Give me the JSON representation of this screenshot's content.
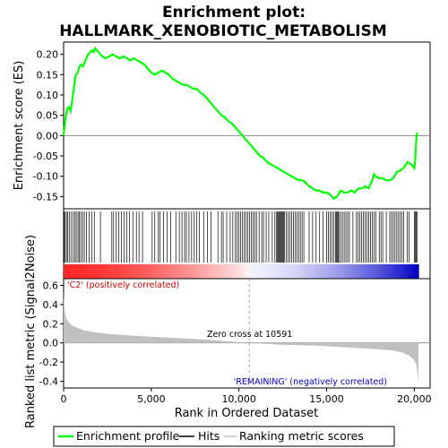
{
  "chart_data": {
    "type": "line",
    "title_line1": "Enrichment plot:",
    "title_line2": "HALLMARK_XENOBIOTIC_METABOLISM",
    "top_panel": {
      "ylabel": "Enrichment score (ES)",
      "ylim": [
        -0.18,
        0.23
      ],
      "yticks": [
        -0.15,
        -0.1,
        -0.05,
        0.0,
        0.05,
        0.1,
        0.15,
        0.2
      ],
      "ytick_labels": [
        "-0.15",
        "-0.10",
        "-0.05",
        "0.00",
        "0.05",
        "0.10",
        "0.15",
        "0.20"
      ],
      "series_name": "Enrichment profile",
      "color": "#00ff00",
      "es_curve": [
        [
          0,
          0.0
        ],
        [
          50,
          0.02
        ],
        [
          120,
          0.045
        ],
        [
          200,
          0.065
        ],
        [
          300,
          0.07
        ],
        [
          400,
          0.06
        ],
        [
          500,
          0.09
        ],
        [
          600,
          0.12
        ],
        [
          700,
          0.15
        ],
        [
          800,
          0.155
        ],
        [
          900,
          0.17
        ],
        [
          1000,
          0.175
        ],
        [
          1100,
          0.17
        ],
        [
          1200,
          0.18
        ],
        [
          1300,
          0.19
        ],
        [
          1400,
          0.2
        ],
        [
          1500,
          0.205
        ],
        [
          1600,
          0.21
        ],
        [
          1700,
          0.205
        ],
        [
          1800,
          0.215
        ],
        [
          1900,
          0.21
        ],
        [
          2000,
          0.205
        ],
        [
          2200,
          0.195
        ],
        [
          2400,
          0.19
        ],
        [
          2600,
          0.195
        ],
        [
          2800,
          0.2
        ],
        [
          3000,
          0.195
        ],
        [
          3200,
          0.19
        ],
        [
          3400,
          0.195
        ],
        [
          3600,
          0.19
        ],
        [
          3800,
          0.185
        ],
        [
          4000,
          0.19
        ],
        [
          4200,
          0.185
        ],
        [
          4400,
          0.18
        ],
        [
          4600,
          0.175
        ],
        [
          4800,
          0.165
        ],
        [
          5000,
          0.155
        ],
        [
          5200,
          0.15
        ],
        [
          5400,
          0.155
        ],
        [
          5600,
          0.16
        ],
        [
          5800,
          0.155
        ],
        [
          6000,
          0.15
        ],
        [
          6200,
          0.14
        ],
        [
          6400,
          0.135
        ],
        [
          6600,
          0.13
        ],
        [
          6800,
          0.125
        ],
        [
          7000,
          0.125
        ],
        [
          7200,
          0.12
        ],
        [
          7400,
          0.115
        ],
        [
          7600,
          0.115
        ],
        [
          7800,
          0.105
        ],
        [
          8000,
          0.1
        ],
        [
          8200,
          0.09
        ],
        [
          8400,
          0.08
        ],
        [
          8600,
          0.07
        ],
        [
          8800,
          0.06
        ],
        [
          9000,
          0.05
        ],
        [
          9200,
          0.045
        ],
        [
          9400,
          0.035
        ],
        [
          9600,
          0.03
        ],
        [
          9800,
          0.02
        ],
        [
          10000,
          0.01
        ],
        [
          10200,
          0.0
        ],
        [
          10400,
          -0.01
        ],
        [
          10600,
          -0.02
        ],
        [
          10800,
          -0.03
        ],
        [
          11000,
          -0.04
        ],
        [
          11200,
          -0.05
        ],
        [
          11400,
          -0.055
        ],
        [
          11600,
          -0.065
        ],
        [
          11800,
          -0.07
        ],
        [
          12000,
          -0.075
        ],
        [
          12200,
          -0.08
        ],
        [
          12400,
          -0.085
        ],
        [
          12600,
          -0.09
        ],
        [
          12800,
          -0.095
        ],
        [
          13000,
          -0.1
        ],
        [
          13200,
          -0.105
        ],
        [
          13400,
          -0.11
        ],
        [
          13600,
          -0.11
        ],
        [
          13800,
          -0.115
        ],
        [
          14000,
          -0.125
        ],
        [
          14200,
          -0.13
        ],
        [
          14400,
          -0.135
        ],
        [
          14600,
          -0.135
        ],
        [
          14800,
          -0.14
        ],
        [
          15000,
          -0.14
        ],
        [
          15200,
          -0.145
        ],
        [
          15400,
          -0.155
        ],
        [
          15600,
          -0.15
        ],
        [
          15800,
          -0.135
        ],
        [
          16000,
          -0.14
        ],
        [
          16200,
          -0.14
        ],
        [
          16400,
          -0.135
        ],
        [
          16600,
          -0.14
        ],
        [
          16800,
          -0.13
        ],
        [
          17000,
          -0.13
        ],
        [
          17200,
          -0.125
        ],
        [
          17400,
          -0.13
        ],
        [
          17600,
          -0.11
        ],
        [
          17700,
          -0.095
        ],
        [
          17800,
          -0.1
        ],
        [
          18000,
          -0.105
        ],
        [
          18200,
          -0.105
        ],
        [
          18400,
          -0.11
        ],
        [
          18600,
          -0.11
        ],
        [
          18800,
          -0.105
        ],
        [
          19000,
          -0.09
        ],
        [
          19200,
          -0.085
        ],
        [
          19400,
          -0.08
        ],
        [
          19600,
          -0.065
        ],
        [
          19800,
          -0.07
        ],
        [
          20000,
          -0.08
        ],
        [
          20050,
          -0.06
        ],
        [
          20100,
          -0.02
        ],
        [
          20150,
          0.005
        ],
        [
          20200,
          0.005
        ]
      ]
    },
    "hits_panel": {
      "series_name": "Hits",
      "hit_positions": [
        30,
        90,
        160,
        230,
        320,
        420,
        540,
        640,
        720,
        820,
        900,
        980,
        1080,
        1180,
        1300,
        1450,
        1600,
        1750,
        2100,
        2750,
        2850,
        3000,
        3150,
        3300,
        3450,
        3600,
        3750,
        3950,
        4150,
        4300,
        4500,
        5050,
        5200,
        5400,
        5500,
        5700,
        5900,
        6100,
        6400,
        6600,
        6750,
        6900,
        7000,
        7150,
        7300,
        7450,
        7600,
        7750,
        8000,
        8200,
        8400,
        8800,
        9000,
        9100,
        9300,
        9500,
        9650,
        9800,
        9900,
        10000,
        10100,
        10200,
        10300,
        10400,
        10500,
        10600,
        10700,
        10800,
        10900,
        11000,
        11150,
        11300,
        11400,
        11550,
        11700,
        11900,
        12050,
        12150,
        12200,
        12250,
        12300,
        12350,
        12400,
        12450,
        12500,
        12550,
        12600,
        12700,
        12800,
        12900,
        13000,
        13100,
        13200,
        13300,
        13400,
        13500,
        13600,
        13700,
        14000,
        14200,
        14400,
        14600,
        14800,
        15000,
        15100,
        15200,
        15300,
        15400,
        15500,
        15550,
        15600,
        15650,
        15700,
        15800,
        15900,
        16000,
        16100,
        16200,
        16300,
        16500,
        16700,
        16800,
        16900,
        17000,
        17100,
        17200,
        17300,
        17400,
        17500,
        17600,
        17700,
        17800,
        18000,
        18100,
        18200,
        18400,
        18600,
        18700,
        18800,
        18900,
        19000,
        19100,
        19200,
        19300,
        19400,
        19600,
        19700,
        20000,
        20050,
        20100,
        20150
      ]
    },
    "bottom_panel": {
      "ylabel": "Ranked list metric (Signal2Noise)",
      "ylim": [
        -0.47,
        0.67
      ],
      "yticks": [
        -0.4,
        -0.2,
        0.0,
        0.2,
        0.4,
        0.6
      ],
      "ytick_labels": [
        "-0.4",
        "-0.2",
        "0.0",
        "0.2",
        "0.4",
        "0.6"
      ],
      "series_name": "Ranking metric scores",
      "color": "#c0c0c0",
      "metric_curve": [
        [
          0,
          0.55
        ],
        [
          20,
          0.42
        ],
        [
          60,
          0.34
        ],
        [
          150,
          0.26
        ],
        [
          300,
          0.21
        ],
        [
          500,
          0.18
        ],
        [
          800,
          0.155
        ],
        [
          1200,
          0.13
        ],
        [
          1800,
          0.11
        ],
        [
          2500,
          0.095
        ],
        [
          3500,
          0.08
        ],
        [
          4500,
          0.07
        ],
        [
          5500,
          0.06
        ],
        [
          6500,
          0.05
        ],
        [
          7500,
          0.04
        ],
        [
          8500,
          0.03
        ],
        [
          9500,
          0.015
        ],
        [
          10591,
          0.0
        ],
        [
          11500,
          -0.01
        ],
        [
          12500,
          -0.02
        ],
        [
          13500,
          -0.025
        ],
        [
          14500,
          -0.03
        ],
        [
          15500,
          -0.04
        ],
        [
          16500,
          -0.05
        ],
        [
          17500,
          -0.06
        ],
        [
          18200,
          -0.07
        ],
        [
          18800,
          -0.08
        ],
        [
          19300,
          -0.1
        ],
        [
          19700,
          -0.13
        ],
        [
          19950,
          -0.17
        ],
        [
          20100,
          -0.22
        ],
        [
          20180,
          -0.3
        ],
        [
          20230,
          -0.43
        ]
      ],
      "label_positive": "'C2' (positively correlated)",
      "label_negative": "'REMAINING' (negatively correlated)",
      "zero_cross_label": "Zero cross at 10591",
      "zero_cross": 10591
    },
    "x_axis": {
      "xlabel": "Rank in Ordered Dataset",
      "xlim": [
        0,
        20900
      ],
      "xticks": [
        0,
        5000,
        10000,
        15000,
        20000
      ],
      "xtick_labels": [
        "0",
        "5,000",
        "10,000",
        "15,000",
        "20,000"
      ],
      "n_genes": 20250
    },
    "legend": {
      "position": "bottom",
      "entries": [
        {
          "label": "Enrichment profile",
          "color": "#00ff00"
        },
        {
          "label": "Hits",
          "color": "#000000"
        },
        {
          "label": "Ranking metric scores",
          "color": "#c0c0c0"
        }
      ]
    }
  }
}
